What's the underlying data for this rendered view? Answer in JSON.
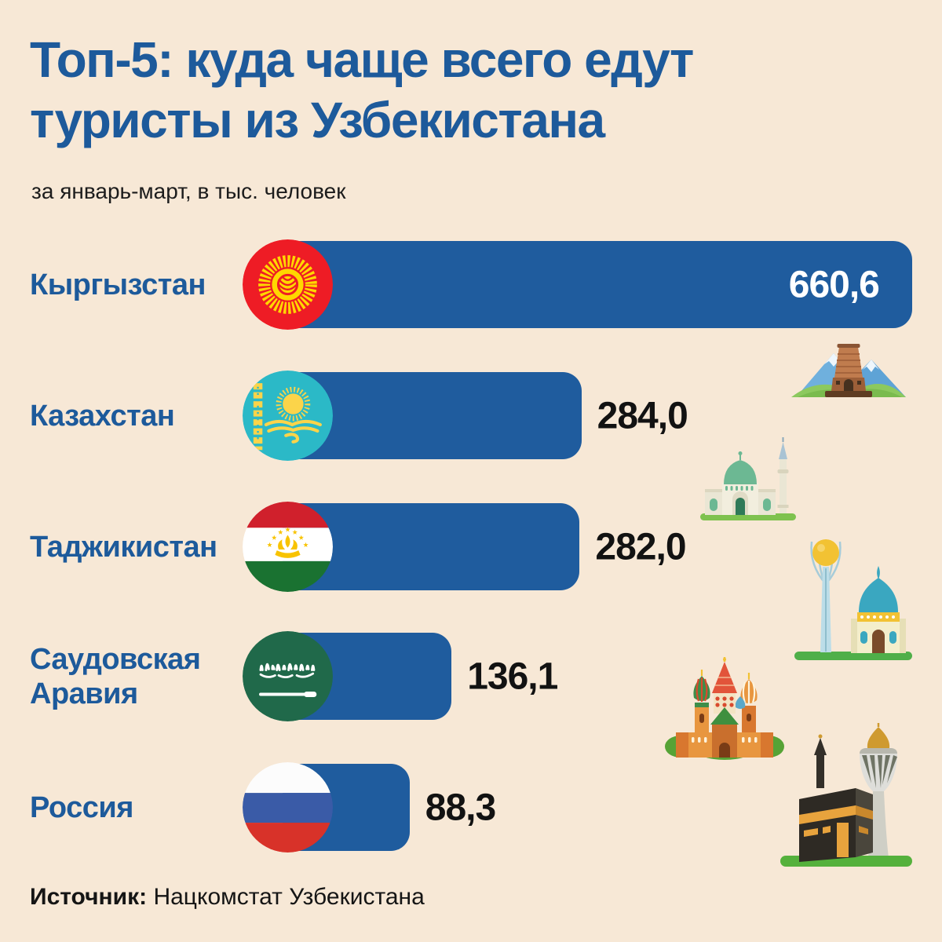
{
  "page": {
    "background_color": "#f7e8d6",
    "accent_blue": "#1d5a9b",
    "bar_color": "#1f5c9e"
  },
  "header": {
    "title": "Топ-5: куда чаще всего едут туристы из Узбекистана",
    "subtitle": "за январь-март, в тыс. человек"
  },
  "chart_data": {
    "type": "bar",
    "orientation": "horizontal",
    "title": "Топ-5: куда чаще всего едут туристы из Узбекистана",
    "period": "январь-март",
    "unit": "тыс. человек",
    "categories": [
      "Кыргызстан",
      "Казахстан",
      "Таджикистан",
      "Саудовская Аравия",
      "Россия"
    ],
    "values": [
      660.6,
      284.0,
      282.0,
      136.1,
      88.3
    ],
    "value_labels": [
      "660,6",
      "284,0",
      "282,0",
      "136,1",
      "88,3"
    ],
    "flag_icons": [
      "kyrgyzstan-flag-icon",
      "kazakhstan-flag-icon",
      "tajikistan-flag-icon",
      "saudi-arabia-flag-icon",
      "russia-flag-icon"
    ],
    "xlim": [
      0,
      660.6
    ],
    "bar_color": "#1f5c9e",
    "value_label_colors": [
      "#ffffff",
      "#121212",
      "#121212",
      "#121212",
      "#121212"
    ],
    "legend": "none",
    "grid": "off"
  },
  "decorations": [
    {
      "icon": "burana-tower-mountains-illustration"
    },
    {
      "icon": "green-dome-mosque-illustration"
    },
    {
      "icon": "baiterek-tower-mausoleum-illustration"
    },
    {
      "icon": "st-basils-cathedral-illustration"
    },
    {
      "icon": "kaaba-tower-illustration"
    }
  ],
  "footer": {
    "source_label": "Источник:",
    "source_value": " Нацкомстат Узбекистана"
  }
}
